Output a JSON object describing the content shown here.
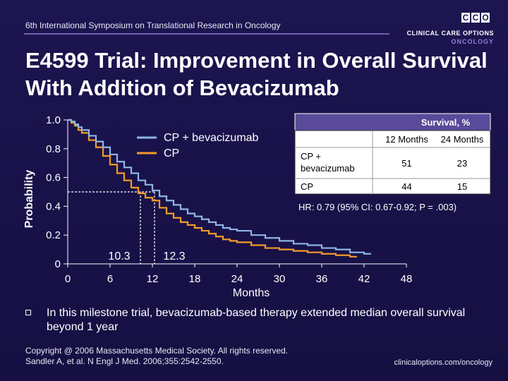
{
  "header": {
    "symposium": "6th International Symposium on Translational Research in Oncology",
    "logo_mark": "CCO",
    "logo_line1": "CLINICAL CARE OPTIONS",
    "logo_line2": "ONCOLOGY"
  },
  "title": "E4599 Trial: Improvement in Overall Survival With Addition of Bevacizumab",
  "bullet": "In this milestone trial, bevacizumab-based therapy extended median overall survival beyond 1 year",
  "copyright_line1": "Copyright @ 2006 Massachusetts Medical Society. All rights reserved.",
  "copyright_line2": "Sandler A, et al. N Engl J Med. 2006;355:2542-2550.",
  "footer_url": "clinicaloptions.com/oncology",
  "colors": {
    "background": "#18124a",
    "cp_bev": "#8fb4e6",
    "cp": "#f39a2a",
    "table_header": "#5a4a9a",
    "table_body": "#ffffff"
  },
  "chart_data": {
    "type": "line",
    "xlabel": "Months",
    "ylabel": "Probability",
    "xlim": [
      0,
      48
    ],
    "ylim": [
      0,
      1.0
    ],
    "x_ticks": [
      0,
      6,
      12,
      18,
      24,
      30,
      36,
      42,
      48
    ],
    "x_tick_labels": [
      "0",
      "6",
      "12",
      "18",
      "24",
      "30",
      "36",
      "42",
      "48"
    ],
    "y_ticks": [
      0,
      0.2,
      0.4,
      0.6,
      0.8,
      1.0
    ],
    "y_tick_labels": [
      "0",
      "0.2",
      "0.4",
      "0.6",
      "0.8",
      "1.0"
    ],
    "legend": [
      "CP + bevacizumab",
      "CP"
    ],
    "legend_position": "top-center",
    "series": [
      {
        "name": "CP + bevacizumab",
        "color": "#8fb4e6",
        "x": [
          0,
          0.5,
          1,
          1.5,
          2,
          3,
          4,
          5,
          6,
          7,
          8,
          9,
          10,
          11,
          12,
          13,
          14,
          15,
          16,
          17,
          18,
          19,
          20,
          21,
          22,
          23,
          24,
          26,
          28,
          30,
          32,
          34,
          36,
          38,
          40,
          42,
          43
        ],
        "y": [
          1.0,
          0.99,
          0.97,
          0.95,
          0.93,
          0.89,
          0.85,
          0.81,
          0.76,
          0.71,
          0.67,
          0.63,
          0.58,
          0.55,
          0.51,
          0.47,
          0.44,
          0.41,
          0.38,
          0.35,
          0.33,
          0.31,
          0.29,
          0.27,
          0.25,
          0.24,
          0.23,
          0.2,
          0.18,
          0.16,
          0.14,
          0.13,
          0.11,
          0.1,
          0.08,
          0.07,
          0.07
        ]
      },
      {
        "name": "CP",
        "color": "#f39a2a",
        "x": [
          0,
          0.5,
          1,
          1.5,
          2,
          3,
          4,
          5,
          6,
          7,
          8,
          9,
          10,
          11,
          12,
          13,
          14,
          15,
          16,
          17,
          18,
          19,
          20,
          21,
          22,
          23,
          24,
          26,
          28,
          30,
          32,
          34,
          36,
          38,
          40,
          41
        ],
        "y": [
          1.0,
          0.98,
          0.96,
          0.93,
          0.91,
          0.86,
          0.81,
          0.75,
          0.69,
          0.63,
          0.58,
          0.53,
          0.49,
          0.46,
          0.44,
          0.39,
          0.35,
          0.32,
          0.29,
          0.27,
          0.25,
          0.23,
          0.21,
          0.19,
          0.17,
          0.16,
          0.15,
          0.13,
          0.11,
          0.1,
          0.09,
          0.08,
          0.07,
          0.06,
          0.05,
          0.05
        ]
      }
    ],
    "medians": [
      {
        "label": "10.3",
        "x": 10.3,
        "y": 0.5
      },
      {
        "label": "12.3",
        "x": 12.3,
        "y": 0.5
      }
    ],
    "table": {
      "header": "Survival, %",
      "columns": [
        "12 Months",
        "24 Months"
      ],
      "rows": [
        {
          "label": "CP + bevacizumab",
          "values": [
            "51",
            "23"
          ]
        },
        {
          "label": "CP",
          "values": [
            "44",
            "15"
          ]
        }
      ]
    },
    "annotation": "HR: 0.79 (95% CI: 0.67-0.92; P = .003)"
  }
}
